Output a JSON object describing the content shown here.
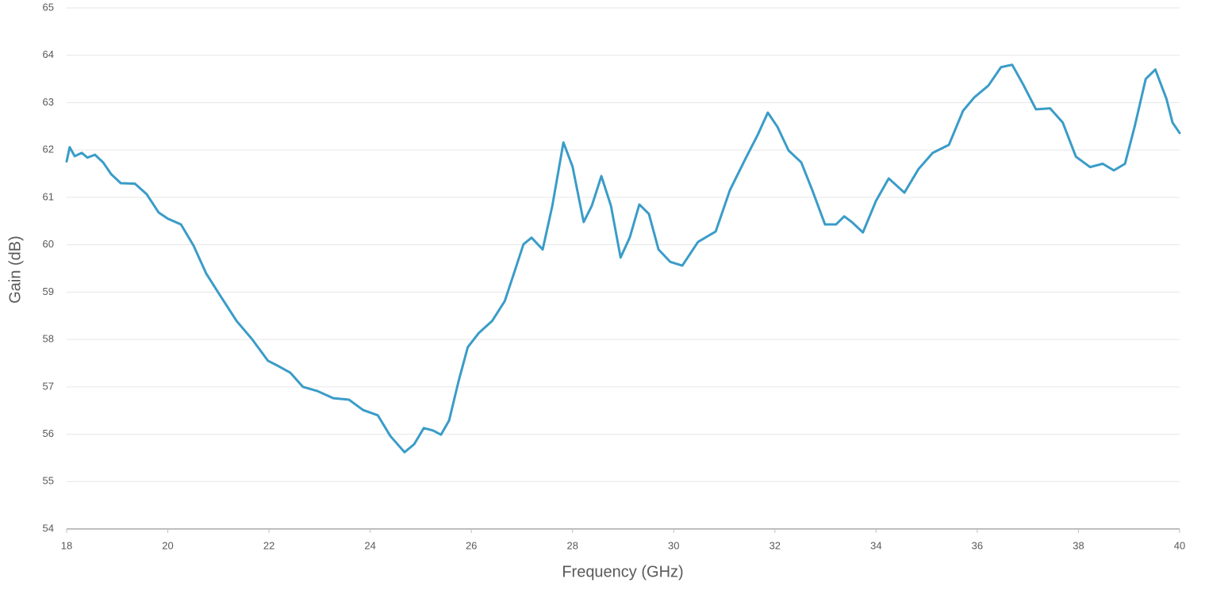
{
  "chart_data": {
    "type": "line",
    "xlabel": "Frequency (GHz)",
    "ylabel": "Gain (dB)",
    "xlim": [
      18,
      40
    ],
    "xticks": [
      18,
      20,
      22,
      24,
      26,
      28,
      30,
      32,
      34,
      36,
      38,
      40
    ],
    "ylim": [
      54,
      65
    ],
    "yticks": [
      54,
      55,
      56,
      57,
      58,
      59,
      60,
      61,
      62,
      63,
      64,
      65
    ],
    "grid": true,
    "x": [
      18,
      18.06,
      18.16,
      18.3,
      18.41,
      18.56,
      18.72,
      18.88,
      19.07,
      19.35,
      19.58,
      19.82,
      20.0,
      20.26,
      20.51,
      20.76,
      21.04,
      21.36,
      21.67,
      21.98,
      22.2,
      22.42,
      22.67,
      22.96,
      23.27,
      23.58,
      23.86,
      24.15,
      24.4,
      24.68,
      24.87,
      25.06,
      25.24,
      25.4,
      25.56,
      25.75,
      25.93,
      26.15,
      26.41,
      26.66,
      26.84,
      27.03,
      27.19,
      27.41,
      27.6,
      27.82,
      28.0,
      28.22,
      28.38,
      28.57,
      28.76,
      28.95,
      29.13,
      29.32,
      29.51,
      29.7,
      29.93,
      30.17,
      30.48,
      30.83,
      31.11,
      31.42,
      31.66,
      31.86,
      32.05,
      32.27,
      32.52,
      32.74,
      32.99,
      33.21,
      33.37,
      33.52,
      33.74,
      34.0,
      34.25,
      34.56,
      34.84,
      35.12,
      35.44,
      35.72,
      35.94,
      36.22,
      36.47,
      36.69,
      36.91,
      37.16,
      37.44,
      37.69,
      37.95,
      38.23,
      38.48,
      38.7,
      38.92,
      39.11,
      39.33,
      39.52,
      39.74,
      39.86,
      40.0
    ],
    "series": [
      {
        "name": "Gain",
        "color": "#3a9cc8",
        "values": [
          61.76,
          62.06,
          61.87,
          61.94,
          61.84,
          61.9,
          61.74,
          61.49,
          61.3,
          61.29,
          61.07,
          60.68,
          60.55,
          60.43,
          59.98,
          59.39,
          58.92,
          58.39,
          58.0,
          57.55,
          57.43,
          57.3,
          57.0,
          56.91,
          56.76,
          56.73,
          56.51,
          56.4,
          55.96,
          55.62,
          55.79,
          56.13,
          56.08,
          55.99,
          56.29,
          57.13,
          57.84,
          58.14,
          58.39,
          58.81,
          59.39,
          60.01,
          60.15,
          59.9,
          60.82,
          62.16,
          61.65,
          60.48,
          60.82,
          61.45,
          60.82,
          59.73,
          60.15,
          60.85,
          60.65,
          59.9,
          59.64,
          59.56,
          60.06,
          60.28,
          61.15,
          61.82,
          62.32,
          62.79,
          62.49,
          61.99,
          61.74,
          61.15,
          60.43,
          60.43,
          60.6,
          60.48,
          60.26,
          60.93,
          61.4,
          61.1,
          61.6,
          61.94,
          62.11,
          62.83,
          63.11,
          63.36,
          63.75,
          63.8,
          63.38,
          62.86,
          62.88,
          62.58,
          61.86,
          61.64,
          61.71,
          61.57,
          61.71,
          62.49,
          63.5,
          63.7,
          63.08,
          62.58,
          62.36
        ]
      }
    ]
  }
}
